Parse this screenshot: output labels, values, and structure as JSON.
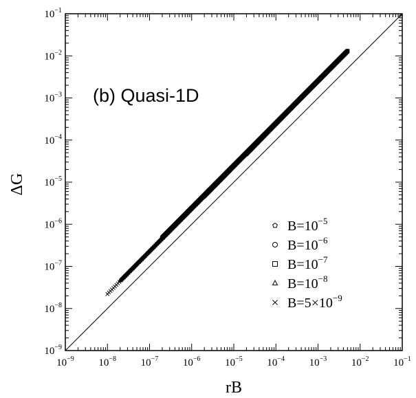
{
  "chart_data": {
    "type": "scatter",
    "title": "",
    "annotation": "(b) Quasi-1D",
    "xlabel": "rB",
    "ylabel": "ΔG",
    "xscale": "log",
    "yscale": "log",
    "xlim": [
      1e-09,
      0.1
    ],
    "ylim": [
      1e-09,
      0.1
    ],
    "x_ticks": [
      {
        "base": "10",
        "exp": "−9"
      },
      {
        "base": "10",
        "exp": "−8"
      },
      {
        "base": "10",
        "exp": "−7"
      },
      {
        "base": "10",
        "exp": "−6"
      },
      {
        "base": "10",
        "exp": "−5"
      },
      {
        "base": "10",
        "exp": "−4"
      },
      {
        "base": "10",
        "exp": "−3"
      },
      {
        "base": "10",
        "exp": "−2"
      },
      {
        "base": "10",
        "exp": "−1"
      }
    ],
    "y_ticks": [
      {
        "base": "10",
        "exp": "−9"
      },
      {
        "base": "10",
        "exp": "−8"
      },
      {
        "base": "10",
        "exp": "−7"
      },
      {
        "base": "10",
        "exp": "−6"
      },
      {
        "base": "10",
        "exp": "−5"
      },
      {
        "base": "10",
        "exp": "−4"
      },
      {
        "base": "10",
        "exp": "−3"
      },
      {
        "base": "10",
        "exp": "−2"
      },
      {
        "base": "10",
        "exp": "−1"
      }
    ],
    "grid": false,
    "legend_position": "bottom-right",
    "reference_line": {
      "x": [
        1e-09,
        0.1
      ],
      "y": [
        1e-09,
        0.1
      ]
    },
    "series": [
      {
        "name": "B=10^-5",
        "label_base": "B=10",
        "label_exp": "−5",
        "marker": "pentagon",
        "x_range": [
          2e-05,
          0.005
        ],
        "y_range": [
          4.5e-05,
          0.013
        ]
      },
      {
        "name": "B=10^-6",
        "label_base": "B=10",
        "label_exp": "−6",
        "marker": "circle",
        "x_range": [
          2e-06,
          0.005
        ],
        "y_range": [
          4.5e-06,
          0.013
        ]
      },
      {
        "name": "B=10^-7",
        "label_base": "B=10",
        "label_exp": "−7",
        "marker": "square",
        "x_range": [
          2e-07,
          0.005
        ],
        "y_range": [
          4.8e-07,
          0.013
        ]
      },
      {
        "name": "B=10^-8",
        "label_base": "B=10",
        "label_exp": "−8",
        "marker": "triangle",
        "x_range": [
          2e-08,
          0.005
        ],
        "y_range": [
          4.6e-08,
          0.013
        ]
      },
      {
        "name": "B=5×10^-9",
        "label_base": "B=5×10",
        "label_exp": "−9",
        "marker": "x",
        "x_range": [
          1e-08,
          0.005
        ],
        "y_range": [
          2.2e-08,
          0.013
        ]
      }
    ]
  }
}
